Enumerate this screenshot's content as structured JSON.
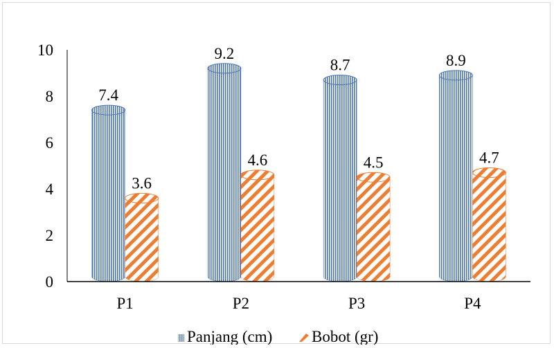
{
  "chart_data": {
    "type": "bar",
    "categories": [
      "P1",
      "P2",
      "P3",
      "P4"
    ],
    "series": [
      {
        "name": "Panjang (cm)",
        "values": [
          7.4,
          9.2,
          8.7,
          8.9
        ],
        "value_labels": [
          "7.4",
          "9.2",
          "8.7",
          "8.9"
        ],
        "color": "#4a74b4",
        "pattern": "vertical-stripes"
      },
      {
        "name": "Bobot (gr)",
        "values": [
          3.6,
          4.6,
          4.5,
          4.7
        ],
        "value_labels": [
          "3.6",
          "4.6",
          "4.5",
          "4.7"
        ],
        "color": "#ed7d31",
        "pattern": "diagonal-stripes"
      }
    ],
    "yticks": [
      "0",
      "2",
      "4",
      "6",
      "8",
      "10"
    ],
    "ylim": [
      0,
      10
    ],
    "bar_shape": "cylinder",
    "grid": false,
    "legend_position": "bottom"
  }
}
